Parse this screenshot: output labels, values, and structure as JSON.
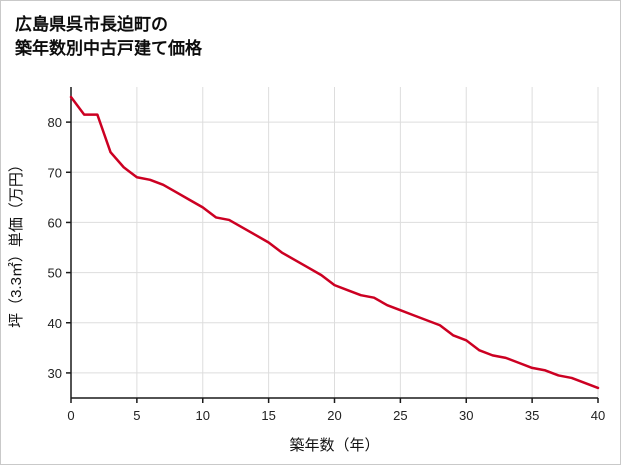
{
  "chart_data": {
    "type": "line",
    "title_line1": "広島県呉市長迫町の",
    "title_line2": "築年数別中古戸建て価格",
    "xlabel": "築年数（年）",
    "ylabel": "坪（3.3㎡）単価（万円）",
    "x": [
      0,
      1,
      2,
      3,
      4,
      5,
      6,
      7,
      8,
      9,
      10,
      11,
      12,
      13,
      14,
      15,
      16,
      17,
      18,
      19,
      20,
      21,
      22,
      23,
      24,
      25,
      26,
      27,
      28,
      29,
      30,
      31,
      32,
      33,
      34,
      35,
      36,
      37,
      38,
      39,
      40
    ],
    "y": [
      85,
      81.5,
      81.5,
      74,
      71,
      69,
      68.5,
      67.5,
      66,
      64.5,
      63,
      61,
      60.5,
      59,
      57.5,
      56,
      54,
      52.5,
      51,
      49.5,
      47.5,
      46.5,
      45.5,
      45,
      43.5,
      42.5,
      41.5,
      40.5,
      39.5,
      37.5,
      36.5,
      34.5,
      33.5,
      33,
      32,
      31,
      30.5,
      29.5,
      29,
      28,
      27
    ],
    "xlim": [
      0,
      40
    ],
    "ylim": [
      25,
      87
    ],
    "xticks": [
      0,
      5,
      10,
      15,
      20,
      25,
      30,
      35,
      40
    ],
    "yticks": [
      30,
      40,
      50,
      60,
      70,
      80
    ],
    "grid": true,
    "legend": "none",
    "colors": {
      "line": "#cc0022",
      "grid": "#dddddd",
      "axis": "#1a1a1a"
    }
  }
}
